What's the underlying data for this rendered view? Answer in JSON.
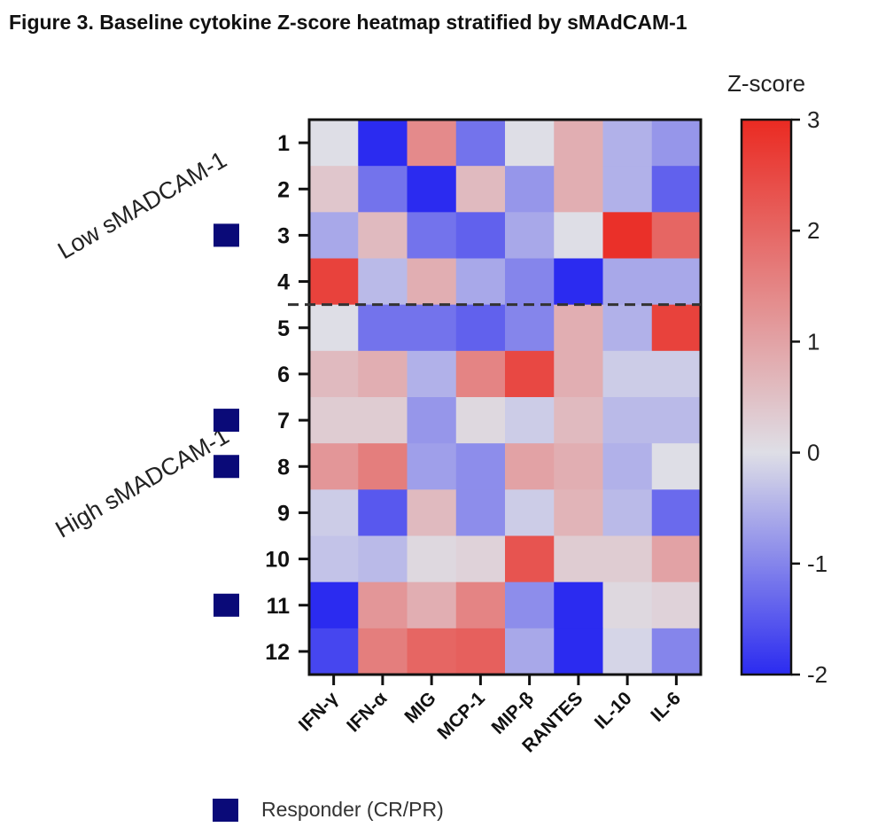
{
  "figure_title": "Figure 3. Baseline cytokine Z-score heatmap stratified by sMAdCAM-1",
  "colorbar_title": "Z-score",
  "legend": {
    "marker_label": "Responder (CR/PR)"
  },
  "colors": {
    "low": "#2b2bf0",
    "mid": "#dedee6",
    "high": "#ea2a22",
    "responder_marker": "#0a0a78",
    "divider": "#333333"
  },
  "chart_data": {
    "type": "heatmap",
    "x_categories": [
      "IFN-γ",
      "IFN-α",
      "MIG",
      "MCP-1",
      "MIP-β",
      "RANTES",
      "IL-10",
      "IL-6"
    ],
    "y_categories": [
      "1",
      "2",
      "3",
      "4",
      "5",
      "6",
      "7",
      "8",
      "9",
      "10",
      "11",
      "12"
    ],
    "values": [
      [
        0.0,
        -2.0,
        1.4,
        -1.2,
        0.0,
        0.8,
        -0.5,
        -0.8
      ],
      [
        0.4,
        -1.2,
        -2.0,
        0.6,
        -0.8,
        0.8,
        -0.5,
        -1.4
      ],
      [
        -0.6,
        0.6,
        -1.2,
        -1.4,
        -0.6,
        0.0,
        2.9,
        2.0
      ],
      [
        2.6,
        -0.4,
        0.8,
        -0.6,
        -1.0,
        -2.0,
        -0.6,
        -0.6
      ],
      [
        0.0,
        -1.2,
        -1.2,
        -1.4,
        -1.0,
        0.8,
        -0.5,
        2.6
      ],
      [
        0.6,
        0.8,
        -0.5,
        1.5,
        2.5,
        0.8,
        -0.2,
        -0.2
      ],
      [
        0.3,
        0.3,
        -0.8,
        0.1,
        -0.2,
        0.6,
        -0.4,
        -0.4
      ],
      [
        1.2,
        1.6,
        -0.7,
        -0.9,
        1.0,
        0.8,
        -0.5,
        0.0
      ],
      [
        -0.2,
        -1.5,
        0.6,
        -0.9,
        -0.2,
        0.7,
        -0.4,
        -1.3
      ],
      [
        -0.3,
        -0.4,
        0.1,
        0.2,
        2.3,
        0.3,
        0.3,
        1.0
      ],
      [
        -2.0,
        1.2,
        0.8,
        1.5,
        -0.9,
        -2.0,
        0.1,
        0.2
      ],
      [
        -1.7,
        1.6,
        2.0,
        2.1,
        -0.6,
        -2.0,
        -0.1,
        -1.0
      ]
    ],
    "colorbar": {
      "min": -2,
      "max": 3,
      "ticks": [
        -2,
        -1,
        0,
        1,
        2,
        3
      ]
    },
    "groups": [
      {
        "label": "Low sMADCAM-1",
        "rows": [
          "1",
          "2",
          "3",
          "4"
        ]
      },
      {
        "label": "High sMADCAM-1",
        "rows": [
          "5",
          "6",
          "7",
          "8",
          "9",
          "10",
          "11",
          "12"
        ]
      }
    ],
    "divider_after_row": "4",
    "responder_rows": [
      "3",
      "7",
      "8",
      "11"
    ]
  }
}
